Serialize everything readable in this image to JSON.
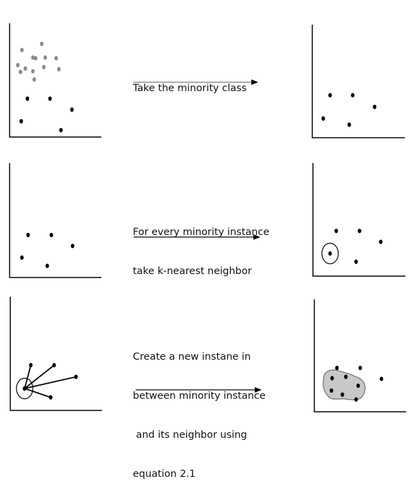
{
  "steps": [
    {
      "lines": [
        "Take the minority class"
      ]
    },
    {
      "lines": [
        "For every minority instance",
        "take k-nearest neighbor"
      ]
    },
    {
      "lines": [
        "Create a new instane in",
        "between minority instance",
        " and its neighbor using",
        "equation 2.1"
      ]
    }
  ],
  "colors": {
    "majority": "#8a8a8a",
    "minority": "#000000",
    "region_fill": "#c8c8c8",
    "axis": "#000000"
  }
}
